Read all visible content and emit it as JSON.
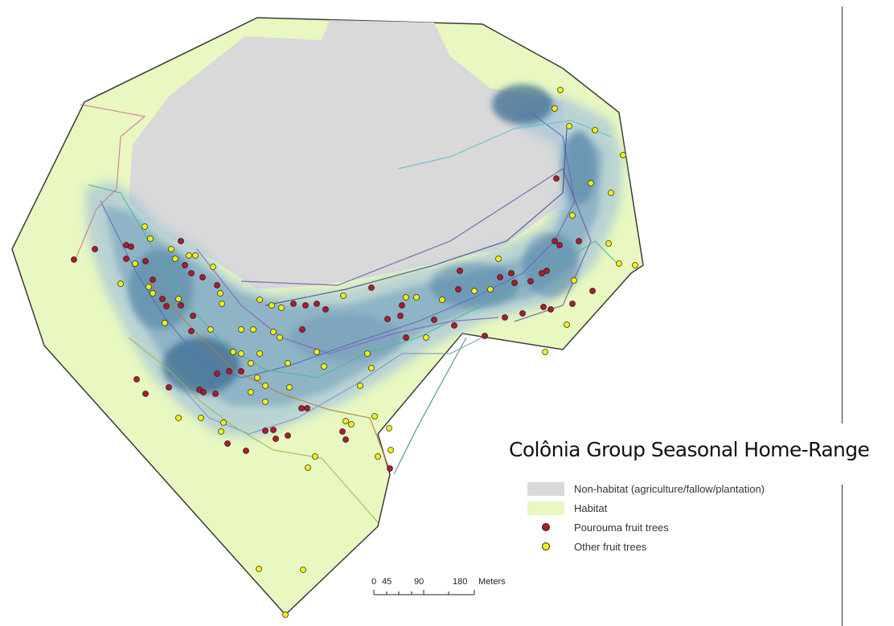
{
  "title": "Colônia Group Seasonal Home-Range",
  "legend": [
    {
      "label": "Non-habitat (agriculture/fallow/plantation)",
      "kind": "swatch",
      "color": "#d9d9d9"
    },
    {
      "label": "Habitat",
      "kind": "swatch",
      "color": "#e8f8c0"
    },
    {
      "label": "Pourouma fruit trees",
      "kind": "dot",
      "color": "#b3182a"
    },
    {
      "label": "Other fruit trees",
      "kind": "dot",
      "color": "#f2f20a"
    }
  ],
  "scale_bar": {
    "ticks": [
      "0",
      "45",
      "90",
      "180"
    ],
    "unit": "Meters"
  },
  "colors": {
    "habitat": "#e8f8c0",
    "non_habitat": "#d9d9d9",
    "kernel_density": "#2c5d8a",
    "pourouma": "#b3182a",
    "other_fruit": "#f2f20a"
  }
}
